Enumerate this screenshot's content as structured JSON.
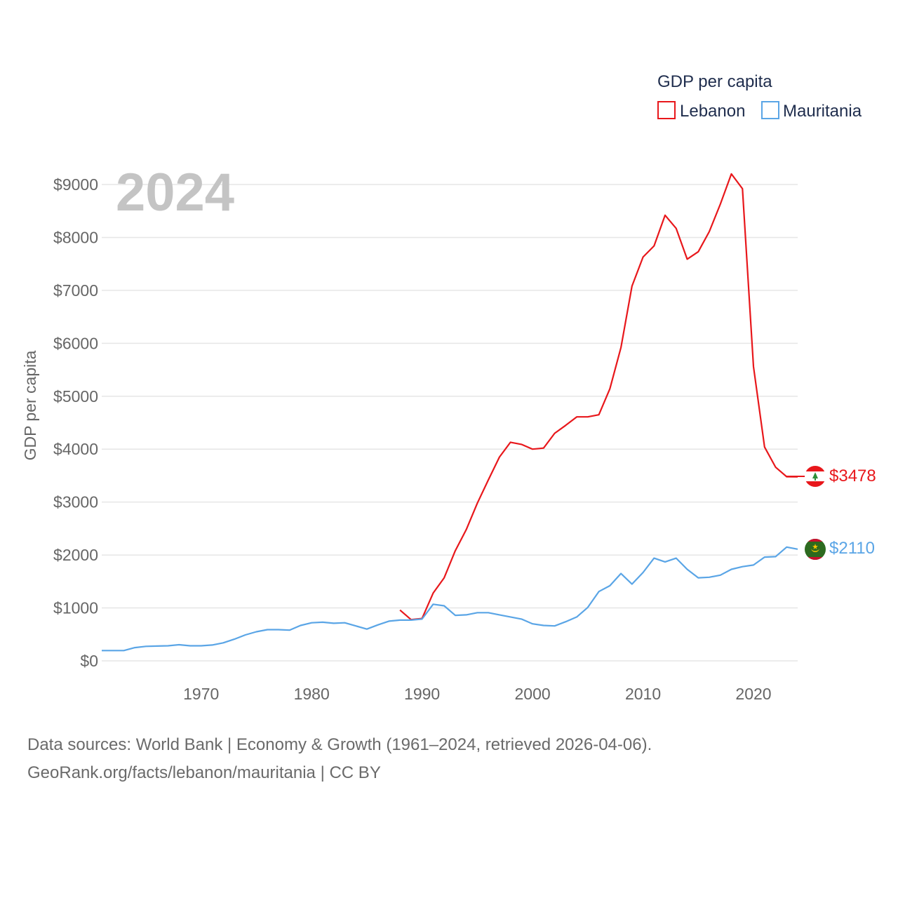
{
  "legend": {
    "title": "GDP per capita"
  },
  "year_label": "2024",
  "source": {
    "line1": "Data sources: World Bank | Economy & Growth (1961–2024, retrieved 2026-04-06).",
    "line2": "GeoRank.org/facts/lebanon/mauritania | CC BY"
  },
  "chart_data": {
    "type": "line",
    "title": "GDP per capita",
    "xlabel": "",
    "ylabel": "GDP per capita",
    "xlim": [
      1961,
      2024
    ],
    "ylim": [
      0,
      9000
    ],
    "y_ticks": [
      0,
      1000,
      2000,
      3000,
      4000,
      5000,
      6000,
      7000,
      8000,
      9000
    ],
    "y_tick_labels": [
      "$0",
      "$1000",
      "$2000",
      "$3000",
      "$4000",
      "$5000",
      "$6000",
      "$7000",
      "$8000",
      "$9000"
    ],
    "x_ticks": [
      1970,
      1980,
      1990,
      2000,
      2010,
      2020
    ],
    "x_tick_labels": [
      "1970",
      "1980",
      "1990",
      "2000",
      "2010",
      "2020"
    ],
    "grid": true,
    "legend_position": "top-right",
    "series": [
      {
        "name": "Lebanon",
        "color": "#e8171b",
        "end_label": "$3478",
        "flag": "lebanon-flag",
        "x": [
          1988,
          1989,
          1990,
          1991,
          1992,
          1993,
          1994,
          1995,
          1996,
          1997,
          1998,
          1999,
          2000,
          2001,
          2002,
          2003,
          2004,
          2005,
          2006,
          2007,
          2008,
          2009,
          2010,
          2011,
          2012,
          2013,
          2014,
          2015,
          2016,
          2017,
          2018,
          2019,
          2020,
          2021,
          2022,
          2023,
          2024
        ],
        "y": [
          960,
          780,
          800,
          1280,
          1570,
          2080,
          2480,
          2980,
          3420,
          3850,
          4130,
          4090,
          4000,
          4020,
          4300,
          4450,
          4610,
          4610,
          4650,
          5140,
          5920,
          7080,
          7630,
          7840,
          8420,
          8170,
          7590,
          7730,
          8110,
          8630,
          9200,
          8920,
          5560,
          4040,
          3660,
          3480,
          3478
        ]
      },
      {
        "name": "Mauritania",
        "color": "#5aa5e6",
        "end_label": "$2110",
        "flag": "mauritania-flag",
        "x": [
          1961,
          1962,
          1963,
          1964,
          1965,
          1966,
          1967,
          1968,
          1969,
          1970,
          1971,
          1972,
          1973,
          1974,
          1975,
          1976,
          1977,
          1978,
          1979,
          1980,
          1981,
          1982,
          1983,
          1984,
          1985,
          1986,
          1987,
          1988,
          1989,
          1990,
          1991,
          1992,
          1993,
          1994,
          1995,
          1996,
          1997,
          1998,
          1999,
          2000,
          2001,
          2002,
          2003,
          2004,
          2005,
          2006,
          2007,
          2008,
          2009,
          2010,
          2011,
          2012,
          2013,
          2014,
          2015,
          2016,
          2017,
          2018,
          2019,
          2020,
          2021,
          2022,
          2023,
          2024
        ],
        "y": [
          195,
          195,
          195,
          250,
          275,
          280,
          285,
          305,
          285,
          285,
          300,
          340,
          410,
          490,
          550,
          590,
          590,
          580,
          670,
          720,
          730,
          710,
          720,
          660,
          600,
          680,
          750,
          770,
          770,
          790,
          1070,
          1040,
          860,
          870,
          910,
          910,
          870,
          830,
          790,
          700,
          670,
          660,
          740,
          830,
          1010,
          1310,
          1420,
          1650,
          1450,
          1670,
          1940,
          1870,
          1940,
          1730,
          1570,
          1580,
          1620,
          1730,
          1780,
          1810,
          1960,
          1970,
          2150,
          2110
        ]
      }
    ]
  }
}
